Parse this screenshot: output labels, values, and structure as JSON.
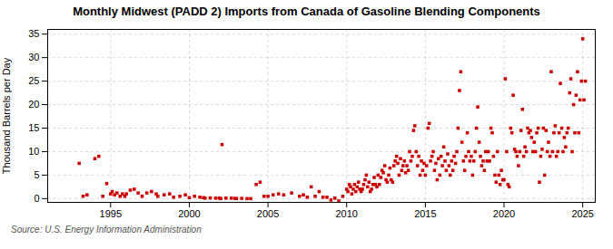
{
  "chart_data": {
    "type": "scatter",
    "title": "Monthly Midwest (PADD 2) Imports from Canada of Gasoline Blending Components",
    "ylabel": "Thousand Barrels per Day",
    "source": "Source: U.S. Energy Information Administration",
    "color": "#cc0000",
    "marker": "square",
    "grid": true,
    "xlim": [
      1991.0,
      2025.8
    ],
    "ylim": [
      -0.8,
      36
    ],
    "xticks": [
      1995,
      2000,
      2005,
      2010,
      2015,
      2020,
      2025
    ],
    "yticks": [
      0,
      5,
      10,
      15,
      20,
      25,
      30,
      35
    ],
    "x": [
      1993.0,
      1993.25,
      1993.5,
      1994.0,
      1994.25,
      1994.5,
      1994.75,
      1995.0,
      1995.1,
      1995.25,
      1995.4,
      1995.6,
      1995.75,
      1995.9,
      1996.0,
      1996.25,
      1996.5,
      1996.75,
      1997.0,
      1997.3,
      1997.6,
      1997.9,
      1998.0,
      1998.4,
      1998.75,
      1999.0,
      1999.4,
      1999.75,
      2000.0,
      2000.33,
      2000.67,
      2000.9,
      2001.0,
      2001.33,
      2001.67,
      2001.9,
      2002.0,
      2002.08,
      2002.33,
      2002.67,
      2002.9,
      2003.0,
      2003.33,
      2003.67,
      2003.9,
      2004.25,
      2004.5,
      2004.75,
      2005.0,
      2005.33,
      2005.67,
      2006.0,
      2006.5,
      2007.0,
      2007.25,
      2007.5,
      2007.75,
      2008.0,
      2008.25,
      2008.5,
      2008.75,
      2009.0,
      2009.25,
      2009.5,
      2009.75,
      2010.0,
      2010.08,
      2010.17,
      2010.25,
      2010.33,
      2010.42,
      2010.5,
      2010.58,
      2010.67,
      2010.75,
      2010.83,
      2010.92,
      2011.0,
      2011.08,
      2011.17,
      2011.25,
      2011.33,
      2011.42,
      2011.5,
      2011.58,
      2011.67,
      2011.75,
      2011.83,
      2011.92,
      2012.0,
      2012.08,
      2012.17,
      2012.25,
      2012.33,
      2012.42,
      2012.5,
      2012.58,
      2012.67,
      2012.75,
      2012.83,
      2012.92,
      2013.0,
      2013.08,
      2013.17,
      2013.25,
      2013.33,
      2013.42,
      2013.5,
      2013.58,
      2013.67,
      2013.75,
      2013.83,
      2013.92,
      2014.0,
      2014.08,
      2014.17,
      2014.25,
      2014.33,
      2014.42,
      2014.5,
      2014.58,
      2014.67,
      2014.75,
      2014.83,
      2014.92,
      2015.0,
      2015.08,
      2015.17,
      2015.25,
      2015.33,
      2015.42,
      2015.5,
      2015.58,
      2015.67,
      2015.75,
      2015.83,
      2015.92,
      2016.0,
      2016.08,
      2016.17,
      2016.25,
      2016.33,
      2016.42,
      2016.5,
      2016.58,
      2016.67,
      2016.75,
      2016.83,
      2016.92,
      2017.0,
      2017.08,
      2017.17,
      2017.25,
      2017.33,
      2017.42,
      2017.5,
      2017.58,
      2017.67,
      2017.75,
      2017.83,
      2017.92,
      2018.0,
      2018.08,
      2018.17,
      2018.25,
      2018.33,
      2018.42,
      2018.5,
      2018.58,
      2018.67,
      2018.75,
      2018.83,
      2018.92,
      2019.0,
      2019.08,
      2019.17,
      2019.25,
      2019.33,
      2019.42,
      2019.5,
      2019.58,
      2019.67,
      2019.75,
      2019.83,
      2019.92,
      2020.0,
      2020.08,
      2020.17,
      2020.25,
      2020.33,
      2020.42,
      2020.5,
      2020.58,
      2020.67,
      2020.75,
      2020.83,
      2020.92,
      2021.0,
      2021.08,
      2021.17,
      2021.25,
      2021.33,
      2021.42,
      2021.5,
      2021.58,
      2021.67,
      2021.75,
      2021.83,
      2021.92,
      2022.0,
      2022.08,
      2022.17,
      2022.25,
      2022.33,
      2022.42,
      2022.5,
      2022.58,
      2022.67,
      2022.75,
      2022.83,
      2022.92,
      2023.0,
      2023.08,
      2023.17,
      2023.25,
      2023.33,
      2023.42,
      2023.5,
      2023.58,
      2023.67,
      2023.75,
      2023.83,
      2023.92,
      2024.0,
      2024.08,
      2024.17,
      2024.25,
      2024.33,
      2024.42,
      2024.5,
      2024.58,
      2024.67,
      2024.75,
      2024.83,
      2024.92,
      2025.0,
      2025.08,
      2025.17
    ],
    "values": [
      7.5,
      0.5,
      0.8,
      8.5,
      9.0,
      0.5,
      3.2,
      1.0,
      1.5,
      0.8,
      1.2,
      0.5,
      1.0,
      0.5,
      1.0,
      1.8,
      2.0,
      1.2,
      0.5,
      1.2,
      1.5,
      1.0,
      0.5,
      0.8,
      1.0,
      0.3,
      0.5,
      0.8,
      0.2,
      0.5,
      0.3,
      0.2,
      0.1,
      0.15,
      0.1,
      0.1,
      0.0,
      11.5,
      0.1,
      0.1,
      0.05,
      0.0,
      0.05,
      0.0,
      0.0,
      3.0,
      3.5,
      0.5,
      0.5,
      0.8,
      1.0,
      0.8,
      1.2,
      0.5,
      0.8,
      0.3,
      2.5,
      0.5,
      1.5,
      0.3,
      0.3,
      -0.3,
      0.1,
      -0.5,
      0.5,
      2.0,
      1.5,
      3.0,
      2.5,
      1.0,
      2.0,
      3.0,
      1.5,
      2.5,
      3.5,
      2.0,
      1.5,
      2.0,
      3.0,
      4.0,
      5.0,
      2.5,
      3.5,
      1.5,
      2.0,
      3.0,
      4.5,
      3.0,
      2.5,
      5.0,
      3.0,
      4.5,
      6.0,
      5.5,
      7.0,
      4.0,
      3.5,
      5.0,
      6.5,
      4.0,
      3.5,
      7.0,
      8.0,
      9.0,
      7.5,
      5.0,
      8.5,
      6.0,
      7.0,
      8.0,
      5.5,
      7.0,
      6.0,
      10.0,
      8.0,
      9.0,
      14.5,
      15.5,
      10.0,
      7.0,
      9.0,
      5.0,
      8.0,
      6.0,
      7.5,
      5.0,
      7.0,
      15.0,
      16.0,
      8.0,
      9.0,
      10.0,
      6.0,
      7.5,
      4.0,
      8.5,
      5.0,
      9.0,
      7.0,
      11.0,
      8.0,
      6.0,
      9.5,
      7.0,
      5.0,
      8.0,
      6.0,
      9.0,
      7.5,
      10.0,
      15.0,
      23.0,
      27.0,
      12.0,
      8.0,
      6.0,
      9.0,
      14.0,
      10.0,
      8.0,
      9.0,
      5.0,
      8.0,
      10.0,
      15.0,
      19.5,
      12.0,
      9.0,
      7.0,
      8.0,
      6.0,
      10.0,
      8.0,
      10.0,
      8.0,
      15.0,
      14.0,
      9.0,
      5.0,
      3.5,
      10.0,
      5.0,
      3.0,
      6.0,
      4.0,
      4.0,
      25.5,
      10.0,
      3.0,
      2.5,
      15.0,
      14.0,
      22.0,
      10.5,
      10.0,
      9.0,
      7.0,
      10.0,
      14.5,
      19.0,
      9.0,
      11.0,
      10.0,
      15.0,
      14.0,
      14.5,
      13.0,
      10.0,
      12.0,
      10.0,
      14.0,
      15.0,
      3.5,
      9.0,
      10.5,
      15.0,
      5.0,
      14.5,
      10.0,
      12.0,
      9.0,
      27.0,
      10.0,
      14.0,
      15.5,
      9.0,
      10.0,
      14.0,
      24.5,
      15.0,
      10.0,
      13.0,
      11.0,
      14.0,
      15.0,
      22.5,
      25.5,
      10.0,
      20.0,
      14.0,
      22.0,
      27.0,
      14.0,
      21.0,
      25.0,
      34.0,
      21.0,
      25.0
    ]
  }
}
